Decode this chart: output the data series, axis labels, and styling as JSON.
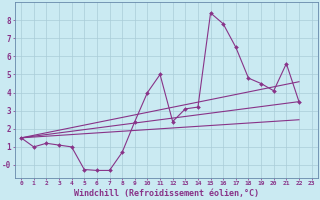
{
  "background_color": "#caeaf2",
  "grid_color": "#aaccd8",
  "line_color": "#883388",
  "marker_color": "#883388",
  "xlabel": "Windchill (Refroidissement éolien,°C)",
  "xlabel_fontsize": 6.0,
  "xlim": [
    -0.5,
    23.5
  ],
  "ylim": [
    -0.7,
    9.0
  ],
  "yticks": [
    0,
    1,
    2,
    3,
    4,
    5,
    6,
    7,
    8
  ],
  "ytick_labels": [
    "-0",
    "1",
    "2",
    "3",
    "4",
    "5",
    "6",
    "7",
    "8"
  ],
  "xticks": [
    0,
    1,
    2,
    3,
    4,
    5,
    6,
    7,
    8,
    9,
    10,
    11,
    12,
    13,
    14,
    15,
    16,
    17,
    18,
    19,
    20,
    21,
    22,
    23
  ],
  "series1_x": [
    0,
    1,
    2,
    3,
    4,
    5,
    6,
    7,
    8,
    9,
    10,
    11,
    12,
    13,
    14,
    15,
    16,
    17,
    18,
    19,
    20,
    21,
    22
  ],
  "series1_y": [
    1.5,
    1.0,
    1.2,
    1.1,
    1.0,
    -0.25,
    -0.3,
    -0.3,
    0.7,
    2.4,
    4.0,
    5.0,
    2.4,
    3.1,
    3.2,
    8.4,
    7.8,
    6.5,
    4.8,
    4.5,
    4.1,
    5.6,
    3.5
  ],
  "series2_x": [
    0,
    22
  ],
  "series2_y": [
    1.5,
    3.5
  ],
  "series3_x": [
    0,
    22
  ],
  "series3_y": [
    1.5,
    4.6
  ],
  "series4_x": [
    0,
    22
  ],
  "series4_y": [
    1.5,
    2.5
  ],
  "figsize": [
    3.2,
    2.0
  ],
  "dpi": 100
}
